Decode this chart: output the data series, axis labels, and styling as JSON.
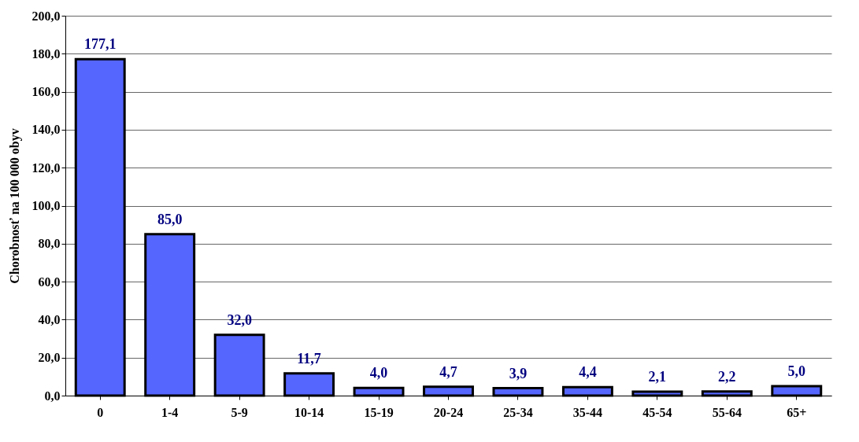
{
  "chart_data": {
    "type": "bar",
    "ylabel": "Chorobnosť na 100 000 obyv",
    "categories": [
      "0",
      "1-4",
      "5-9",
      "10-14",
      "15-19",
      "20-24",
      "25-34",
      "35-44",
      "45-54",
      "55-64",
      "65+"
    ],
    "values": [
      177.1,
      85.0,
      32.0,
      11.7,
      4.0,
      4.7,
      3.9,
      4.4,
      2.1,
      2.2,
      5.0
    ],
    "value_labels": [
      "177,1",
      "85,0",
      "32,0",
      "11,7",
      "4,0",
      "4,7",
      "3,9",
      "4,4",
      "2,1",
      "2,2",
      "5,0"
    ],
    "color": "#5566ff",
    "ylim": [
      0,
      200
    ],
    "yticks": [
      {
        "value": 0,
        "label": "0,0"
      },
      {
        "value": 20,
        "label": "20,0"
      },
      {
        "value": 40,
        "label": "40,0"
      },
      {
        "value": 60,
        "label": "60,0"
      },
      {
        "value": 80,
        "label": "80,0"
      },
      {
        "value": 100,
        "label": "100,0"
      },
      {
        "value": 120,
        "label": "120,0"
      },
      {
        "value": 140,
        "label": "140,0"
      },
      {
        "value": 160,
        "label": "160,0"
      },
      {
        "value": 180,
        "label": "180,0"
      },
      {
        "value": 200,
        "label": "200,0"
      }
    ],
    "grid": "y"
  }
}
